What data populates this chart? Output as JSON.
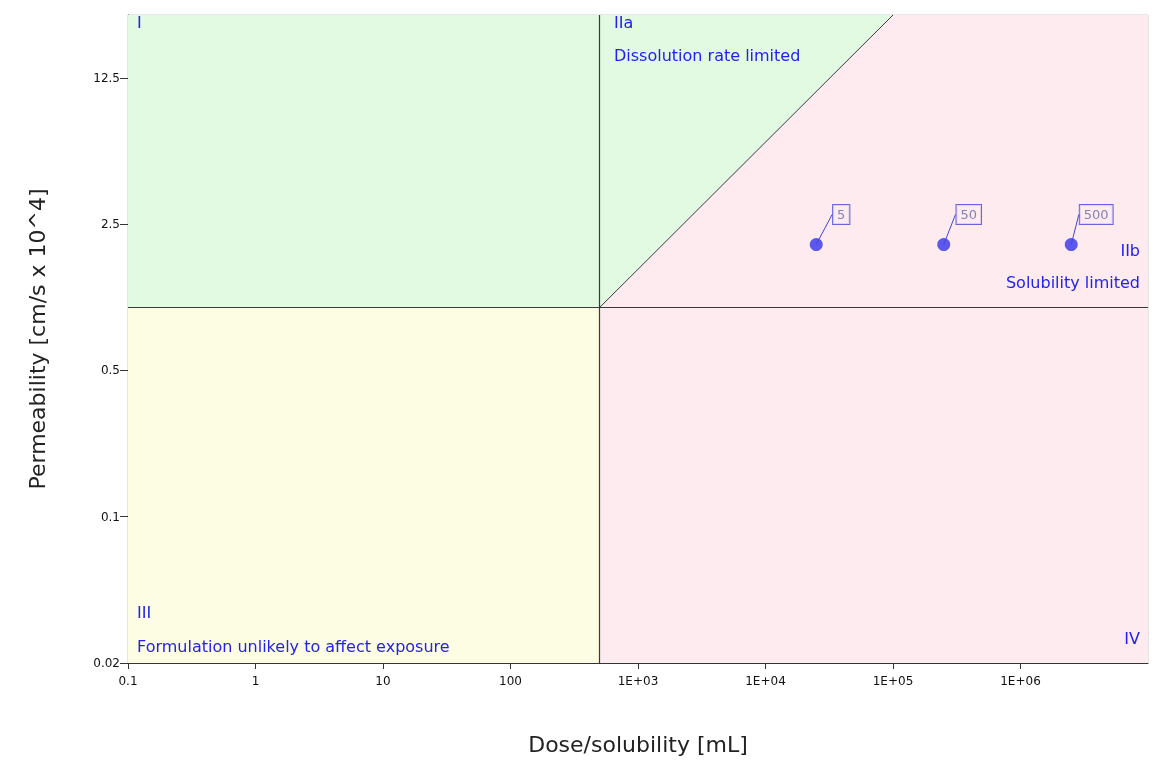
{
  "chart_data": {
    "type": "scatter",
    "xlabel": "Dose/solubility [mL]",
    "ylabel": "Permeability [cm/s x 10^4]",
    "log": "xy",
    "xlim": [
      0.1,
      10000000
    ],
    "ylim": [
      0.02,
      25
    ],
    "xticks": [
      0.1,
      1,
      10,
      100,
      {
        "value": 1000,
        "label": "1E+03"
      },
      {
        "value": 10000,
        "label": "1E+04"
      },
      {
        "value": 100000,
        "label": "1E+05"
      },
      {
        "value": 1000000,
        "label": "1E+06"
      }
    ],
    "yticks": [
      0.02,
      0.1,
      0.5,
      2.5,
      12.5
    ],
    "marker": "circle",
    "series": [
      {
        "type": "area",
        "marker": "none",
        "color": "#e2f9e2",
        "x": [
          500,
          100000
        ],
        "values": [
          1,
          25
        ]
      },
      {
        "color": "#3333ee",
        "x": [
          25000,
          250000,
          2500000
        ],
        "values": [
          2,
          2,
          2
        ]
      }
    ],
    "bands": [
      {
        "axis": "y",
        "from": 1,
        "to": 25,
        "color": "#e2f9e2"
      },
      {
        "axis": "y",
        "from": 0.02,
        "to": 1,
        "color": "#fdfde3"
      },
      {
        "axis": "x",
        "from": 500,
        "to": 10000000,
        "color": "#fdebef"
      }
    ],
    "ref_lines": [
      {
        "axis": "x",
        "value": 500,
        "color": "#3a3a3a"
      },
      {
        "axis": "y",
        "value": 1,
        "color": "#3a3a3a"
      }
    ],
    "annotations": [
      {
        "text": "5",
        "x": 25000,
        "y": 2
      },
      {
        "text": "50",
        "x": 250000,
        "y": 2
      },
      {
        "text": "500",
        "x": 2500000,
        "y": 2
      },
      "I",
      "IIa",
      "Dissolution rate limited",
      "IIb",
      "Solubility limited",
      "III",
      "Formulation unlikely to affect exposure",
      "IV"
    ]
  }
}
